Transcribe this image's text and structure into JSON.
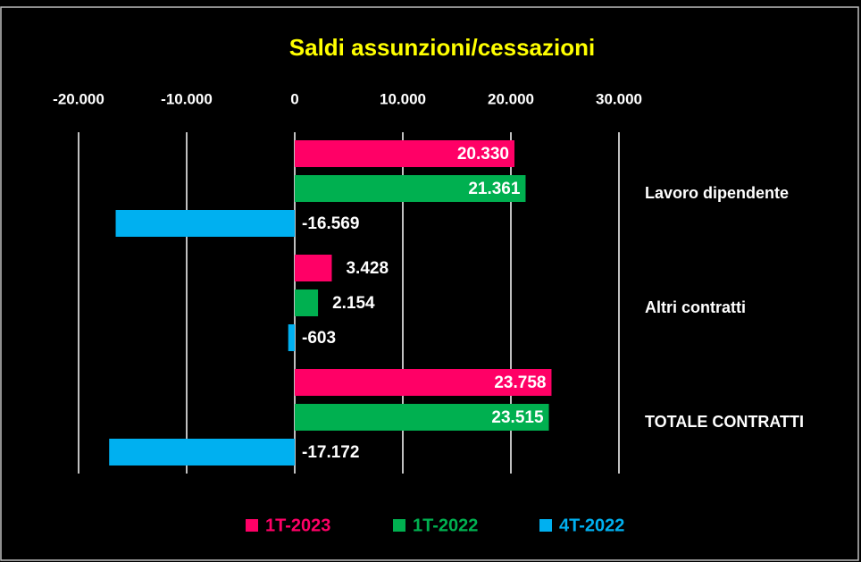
{
  "chart_data": {
    "type": "bar",
    "orientation": "horizontal",
    "title": "Saldi assunzioni/cessazioni",
    "categories": [
      "Lavoro dipendente",
      "Altri contratti",
      "TOTALE CONTRATTI"
    ],
    "series": [
      {
        "name": "1T-2023",
        "color": "#ff0066",
        "values": [
          20330,
          3428,
          23758
        ],
        "value_labels": [
          "20.330",
          "3.428",
          "23.758"
        ]
      },
      {
        "name": "1T-2022",
        "color": "#00b050",
        "values": [
          21361,
          2154,
          23515
        ],
        "value_labels": [
          "21.361",
          "2.154",
          "23.515"
        ]
      },
      {
        "name": "4T-2022",
        "color": "#00b0f0",
        "values": [
          -16569,
          -603,
          -17172
        ],
        "value_labels": [
          "-16.569",
          "-603",
          "-17.172"
        ]
      }
    ],
    "xlim": [
      -20000,
      30000
    ],
    "xticks": [
      {
        "value": -20000,
        "label": "-20.000"
      },
      {
        "value": -10000,
        "label": "-10.000"
      },
      0,
      {
        "value": 10000,
        "label": "10.000"
      },
      {
        "value": 20000,
        "label": "20.000"
      },
      {
        "value": 30000,
        "label": "30.000"
      }
    ],
    "grid": true,
    "legend": "bottom"
  }
}
